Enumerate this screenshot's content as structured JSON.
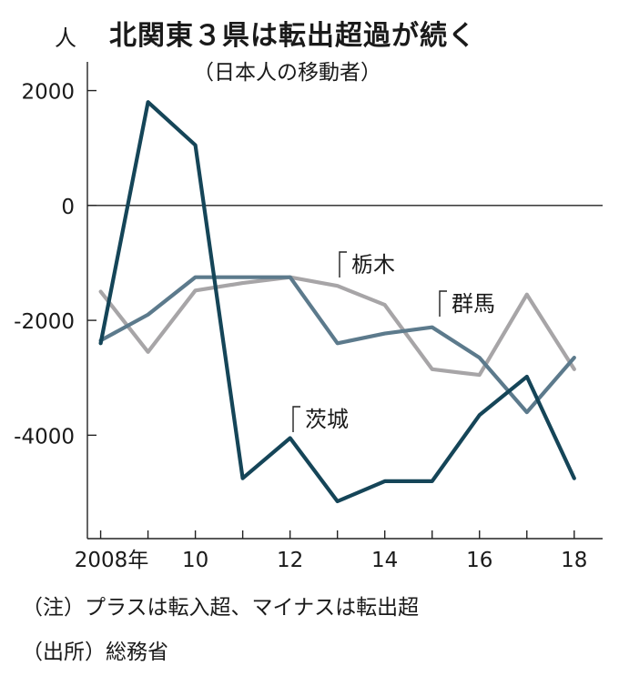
{
  "chart_data": {
    "type": "line",
    "title": "北関東３県は転出超過が続く",
    "subtitle": "（日本人の移動者）",
    "ylabel": "人",
    "x": [
      2008,
      2009,
      2010,
      2011,
      2012,
      2013,
      2014,
      2015,
      2016,
      2017,
      2018
    ],
    "xtick_labels": [
      "2008年",
      "10",
      "12",
      "14",
      "16",
      "18"
    ],
    "xtick_values": [
      2008,
      2010,
      2012,
      2014,
      2016,
      2018
    ],
    "ylim": [
      -5800,
      2500
    ],
    "yticks": [
      2000,
      0,
      -2000,
      -4000
    ],
    "ytick_labels": [
      "2000",
      "0",
      "-2000",
      "-4000"
    ],
    "series": [
      {
        "name": "栃木",
        "color": "#a7a5a7",
        "values": [
          -1500,
          -2550,
          -1480,
          -1350,
          -1250,
          -1400,
          -1730,
          -2850,
          -2950,
          -1550,
          -2850
        ]
      },
      {
        "name": "群馬",
        "color": "#5c7a8c",
        "values": [
          -2350,
          -1900,
          -1250,
          -1250,
          -1250,
          -2400,
          -2230,
          -2120,
          -2650,
          -3600,
          -2650
        ]
      },
      {
        "name": "茨城",
        "color": "#154558",
        "values": [
          -2400,
          1800,
          1050,
          -4750,
          -4050,
          -5150,
          -4800,
          -4800,
          -3650,
          -2980,
          -4750
        ]
      }
    ],
    "annotations": [
      "栃木",
      "群馬",
      "茨城"
    ],
    "legend": "inline labels"
  },
  "footer": {
    "note": "（注）プラスは転入超、マイナスは転出超",
    "source": "（出所）総務省"
  }
}
